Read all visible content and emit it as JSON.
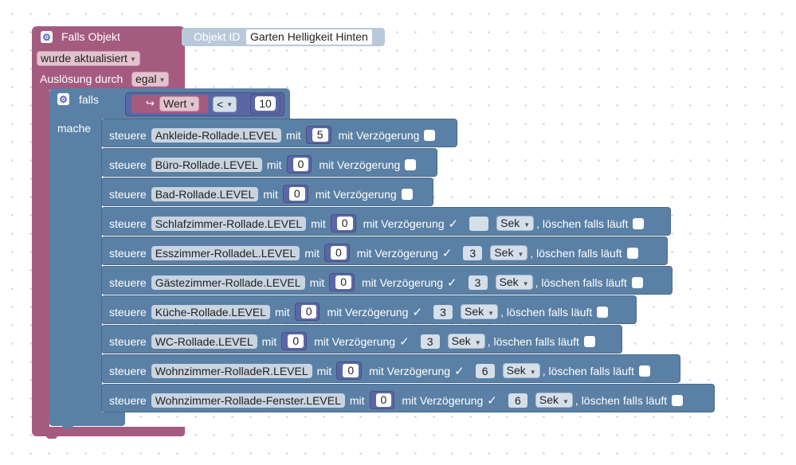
{
  "header": {
    "title": "Falls Objekt",
    "objekt_id_label": "Objekt ID",
    "objekt_id_value": "Garten Helligkeit Hinten",
    "trigger_value": "wurde aktualisiert",
    "ausloesung_label": "Auslösung durch",
    "ausloesung_value": "egal"
  },
  "ifblock": {
    "falls_label": "falls",
    "mache_label": "mache",
    "condition": {
      "arrow": "↪",
      "variable": "Wert",
      "operator": "<",
      "value": "10"
    }
  },
  "labels": {
    "steuere": "steuere",
    "mit": "mit",
    "mit_verzoegerung": "mit Verzögerung",
    "loeschen": ", löschen falls läuft",
    "checkmark": "✓"
  },
  "actions": [
    {
      "object": "Ankleide-Rollade.LEVEL",
      "value": "5",
      "delay_checked": false
    },
    {
      "object": "Büro-Rollade.LEVEL",
      "value": "0",
      "delay_checked": false
    },
    {
      "object": "Bad-Rollade.LEVEL",
      "value": "0",
      "delay_checked": false
    },
    {
      "object": "Schlafzimmer-Rollade.LEVEL",
      "value": "0",
      "delay_checked": true,
      "delay": "",
      "unit": "Sek",
      "clear_checked": false
    },
    {
      "object": "Esszimmer-RolladeL.LEVEL",
      "value": "0",
      "delay_checked": true,
      "delay": "3",
      "unit": "Sek",
      "clear_checked": false
    },
    {
      "object": "Gästezimmer-Rollade.LEVEL",
      "value": "0",
      "delay_checked": true,
      "delay": "3",
      "unit": "Sek",
      "clear_checked": false
    },
    {
      "object": "Küche-Rollade.LEVEL",
      "value": "0",
      "delay_checked": true,
      "delay": "3",
      "unit": "Sek",
      "clear_checked": false
    },
    {
      "object": "WC-Rollade.LEVEL",
      "value": "0",
      "delay_checked": true,
      "delay": "3",
      "unit": "Sek",
      "clear_checked": false
    },
    {
      "object": "Wohnzimmer-RolladeR.LEVEL",
      "value": "0",
      "delay_checked": true,
      "delay": "6",
      "unit": "Sek",
      "clear_checked": false
    },
    {
      "object": "Wohnzimmer-Rollade-Fenster.LEVEL",
      "value": "0",
      "delay_checked": true,
      "delay": "6",
      "unit": "Sek",
      "clear_checked": false
    }
  ],
  "colors": {
    "event_block": "#a55b80",
    "logic_block": "#5b80a5",
    "math_block": "#5b67a5"
  }
}
